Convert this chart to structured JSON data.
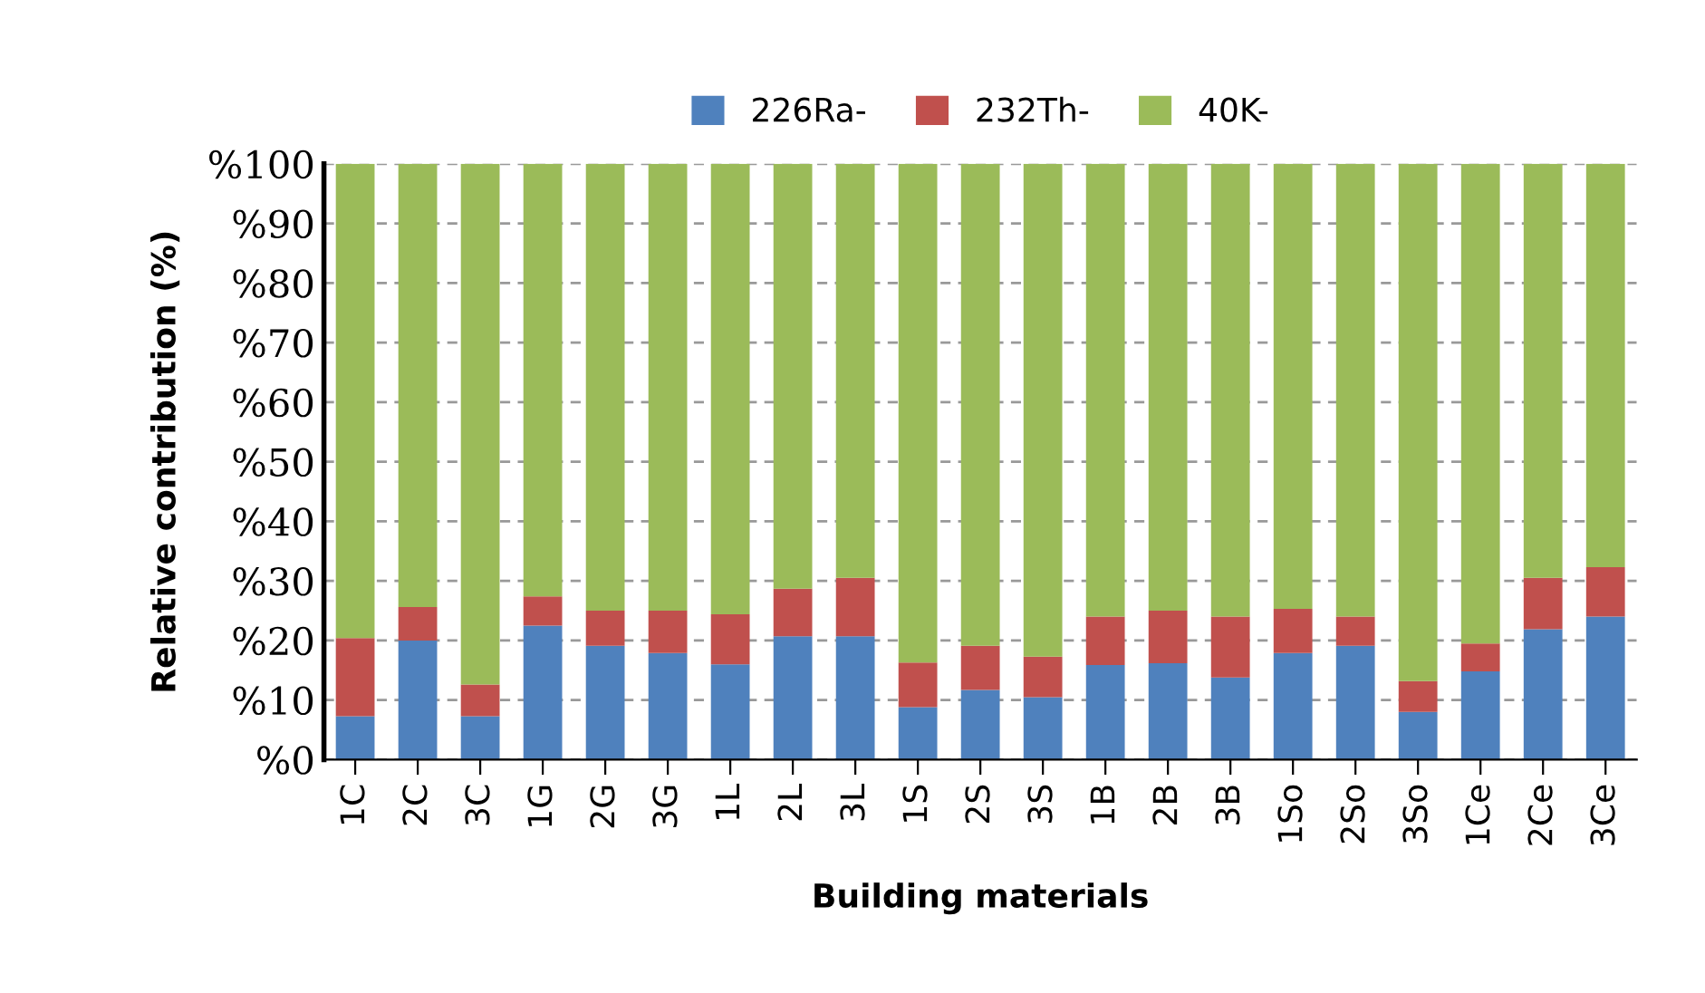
{
  "chart_data": {
    "type": "bar",
    "stacked": true,
    "xlabel": "Building materials",
    "ylabel": "Relative contribution (%)",
    "categories": [
      "1C",
      "2C",
      "3C",
      "1G",
      "2G",
      "3G",
      "1L",
      "2L",
      "3L",
      "1S",
      "2S",
      "3S",
      "1B",
      "2B",
      "3B",
      "1So",
      "2So",
      "3So",
      "1Ce",
      "2Ce",
      "3Ce"
    ],
    "series": [
      {
        "name": "226Ra-",
        "color": "#4f81bd",
        "values": [
          7.3,
          20.0,
          7.3,
          22.5,
          19.1,
          17.9,
          16.0,
          20.7,
          20.7,
          8.8,
          11.7,
          10.5,
          15.9,
          16.2,
          13.8,
          17.9,
          19.1,
          8.0,
          14.8,
          21.9,
          24.0
        ]
      },
      {
        "name": "232Th-",
        "color": "#c0504d",
        "values": [
          13.1,
          5.6,
          5.3,
          4.9,
          5.9,
          7.1,
          8.4,
          8.0,
          9.8,
          7.5,
          7.4,
          6.8,
          8.1,
          8.8,
          10.2,
          7.4,
          4.9,
          5.2,
          4.7,
          8.6,
          8.3
        ]
      },
      {
        "name": "40K-",
        "color": "#9bbb59",
        "values": [
          79.6,
          74.4,
          87.4,
          72.6,
          75.0,
          75.0,
          75.6,
          71.3,
          69.5,
          83.7,
          80.9,
          82.7,
          76.0,
          75.0,
          76.0,
          74.7,
          76.0,
          86.8,
          80.5,
          69.5,
          67.7
        ]
      }
    ],
    "ylim": [
      0,
      100
    ],
    "yticks": [
      {
        "value": 0,
        "label": "%0"
      },
      {
        "value": 10,
        "label": "%10"
      },
      {
        "value": 20,
        "label": "%20"
      },
      {
        "value": 30,
        "label": "%30"
      },
      {
        "value": 40,
        "label": "%40"
      },
      {
        "value": 50,
        "label": "%50"
      },
      {
        "value": 60,
        "label": "%60"
      },
      {
        "value": 70,
        "label": "%70"
      },
      {
        "value": 80,
        "label": "%80"
      },
      {
        "value": 90,
        "label": "%90"
      },
      {
        "value": 100,
        "label": "%100"
      }
    ],
    "grid": "y",
    "legend": "top"
  }
}
